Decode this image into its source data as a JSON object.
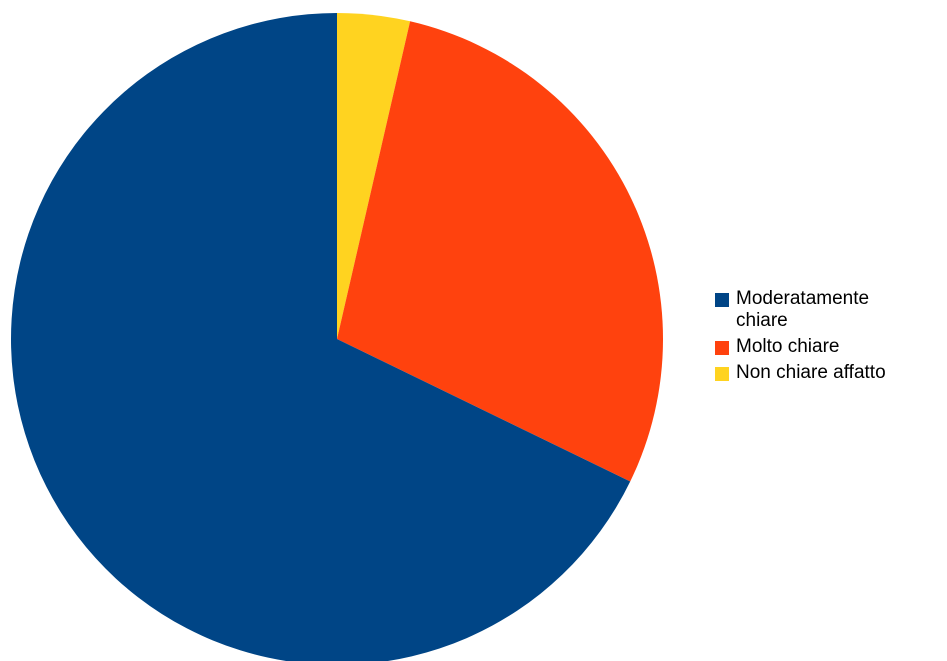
{
  "chart_data": {
    "type": "pie",
    "title": "",
    "start_angle_deg": 0,
    "direction": "clockwise",
    "slices": [
      {
        "label": "Non chiare affatto",
        "value": 3.6,
        "color": "#ffd320"
      },
      {
        "label": "Molto chiare",
        "value": 28.6,
        "color": "#ff420e"
      },
      {
        "label": "Moderatamente chiare",
        "value": 67.8,
        "color": "#004586"
      }
    ],
    "legend": {
      "position": "right",
      "items": [
        {
          "label": "Moderatamente chiare",
          "color": "#004586"
        },
        {
          "label": "Molto chiare",
          "color": "#ff420e"
        },
        {
          "label": "Non chiare affatto",
          "color": "#ffd320"
        }
      ]
    }
  }
}
